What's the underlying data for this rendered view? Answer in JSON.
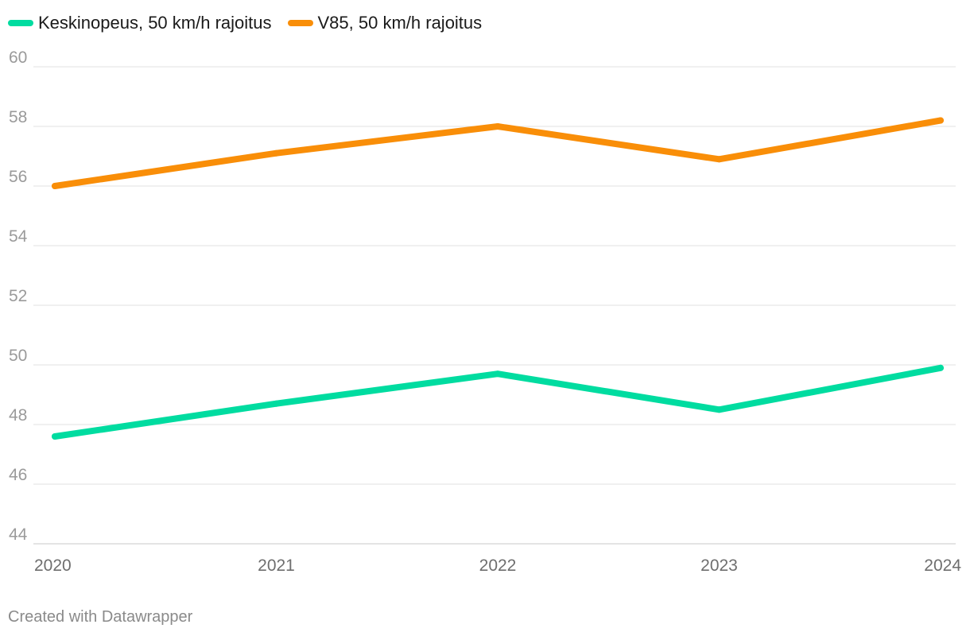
{
  "chart_data": {
    "type": "line",
    "x": [
      "2020",
      "2021",
      "2022",
      "2023",
      "2024"
    ],
    "series": [
      {
        "name": "Keskinopeus, 50 km/h rajoitus",
        "color": "#00dca0",
        "values": [
          47.6,
          48.7,
          49.7,
          48.5,
          49.9
        ]
      },
      {
        "name": "V85, 50 km/h rajoitus",
        "color": "#f98e08",
        "values": [
          56.0,
          57.1,
          58.0,
          56.9,
          58.2
        ]
      }
    ],
    "ylim": [
      44,
      60
    ],
    "yticks": [
      "60",
      "58",
      "56",
      "54",
      "52",
      "50",
      "48",
      "46",
      "44"
    ],
    "grid": true,
    "legend_position": "top-left"
  },
  "footer": {
    "credit": "Created with Datawrapper"
  }
}
